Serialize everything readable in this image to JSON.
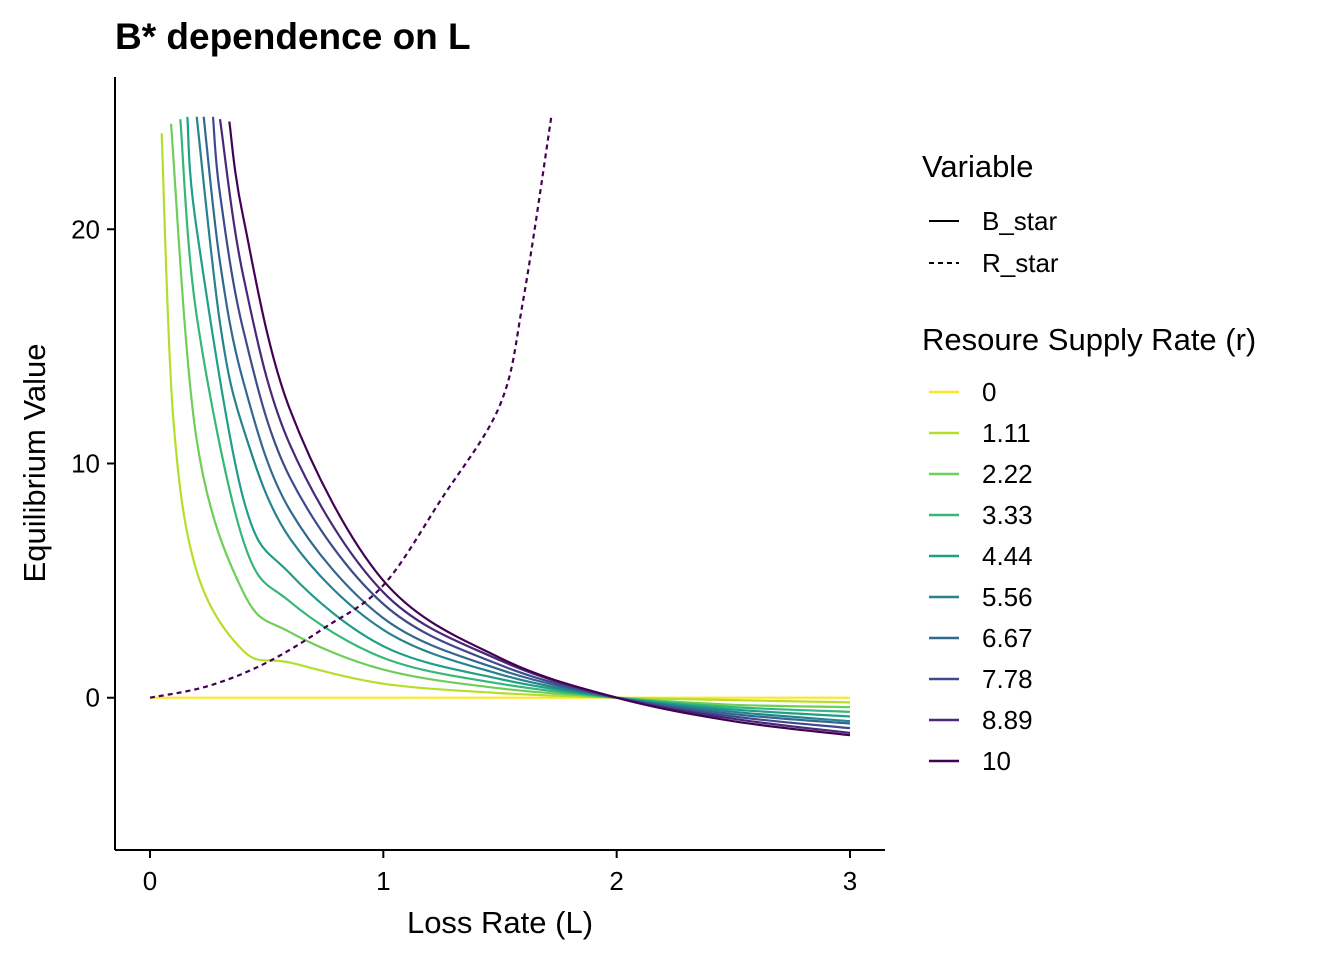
{
  "chart_data": {
    "type": "line",
    "title": "B* dependence on L",
    "xlabel": "Loss Rate (L)",
    "ylabel": "Equilibrium Value",
    "xlim": [
      -0.15,
      3.15
    ],
    "ylim": [
      -6.5,
      26.5
    ],
    "x_ticks": [
      0,
      1,
      2,
      3
    ],
    "x_tick_labels": [
      "0",
      "1",
      "2",
      "3"
    ],
    "y_ticks": [
      0,
      10,
      20
    ],
    "y_tick_labels": [
      "0",
      "10",
      "20"
    ],
    "grid": false,
    "legend_position": "right",
    "legend_variable": {
      "title": "Variable",
      "entries": [
        {
          "label": "B_star",
          "linetype": "solid"
        },
        {
          "label": "R_star",
          "linetype": "dashed"
        }
      ]
    },
    "legend_color": {
      "title": "Resoure Supply Rate (r)",
      "entries": [
        {
          "label": "0",
          "color": "#FDE725"
        },
        {
          "label": "1.11",
          "color": "#B5DE2B"
        },
        {
          "label": "2.22",
          "color": "#6ECE58"
        },
        {
          "label": "3.33",
          "color": "#35B779"
        },
        {
          "label": "4.44",
          "color": "#1F9E89"
        },
        {
          "label": "5.56",
          "color": "#26828E"
        },
        {
          "label": "6.67",
          "color": "#31688E"
        },
        {
          "label": "7.78",
          "color": "#3E4A89"
        },
        {
          "label": "8.89",
          "color": "#482878"
        },
        {
          "label": "10",
          "color": "#440154"
        }
      ]
    },
    "series_note": "B_star for each r; R_star shown as single dashed curve",
    "series": [
      {
        "r": 0,
        "variable": "B_star",
        "color": "#FDE725",
        "x": [
          0,
          3
        ],
        "y": [
          0,
          0
        ]
      },
      {
        "r": 1.11,
        "variable": "B_star",
        "color": "#B5DE2B",
        "x": [
          0.05,
          0.1,
          0.2,
          0.4,
          0.6,
          1.0,
          1.5,
          2.0,
          2.5,
          3.0
        ],
        "y": [
          24.1,
          11.9,
          5.4,
          2.0,
          1.5,
          0.6,
          0.2,
          0,
          -0.1,
          -0.2
        ]
      },
      {
        "r": 2.22,
        "variable": "B_star",
        "color": "#6ECE58",
        "x": [
          0.09,
          0.2,
          0.4,
          0.6,
          1.0,
          1.5,
          2.0,
          2.5,
          3.0
        ],
        "y": [
          24.5,
          11.0,
          4.5,
          2.8,
          1.2,
          0.4,
          0,
          -0.3,
          -0.4
        ]
      },
      {
        "r": 3.33,
        "variable": "B_star",
        "color": "#35B779",
        "x": [
          0.13,
          0.2,
          0.4,
          0.6,
          1.0,
          1.5,
          2.0,
          2.5,
          3.0
        ],
        "y": [
          24.7,
          16.3,
          6.7,
          4.1,
          1.7,
          0.6,
          0,
          -0.4,
          -0.6
        ]
      },
      {
        "r": 4.44,
        "variable": "B_star",
        "color": "#1F9E89",
        "x": [
          0.16,
          0.2,
          0.4,
          0.6,
          1.0,
          1.5,
          2.0,
          2.5,
          3.0
        ],
        "y": [
          24.8,
          20.0,
          8.5,
          5.3,
          2.2,
          0.8,
          0,
          -0.5,
          -0.8
        ]
      },
      {
        "r": 5.56,
        "variable": "B_star",
        "color": "#26828E",
        "x": [
          0.2,
          0.3,
          0.4,
          0.6,
          1.0,
          1.5,
          2.0,
          2.5,
          3.0
        ],
        "y": [
          24.8,
          16.0,
          11.5,
          6.8,
          2.9,
          1.0,
          0,
          -0.6,
          -1.0
        ]
      },
      {
        "r": 6.67,
        "variable": "B_star",
        "color": "#31688E",
        "x": [
          0.23,
          0.3,
          0.4,
          0.6,
          1.0,
          1.5,
          2.0,
          2.5,
          3.0
        ],
        "y": [
          24.8,
          18.6,
          13.5,
          8.0,
          3.4,
          1.2,
          0,
          -0.7,
          -1.1
        ]
      },
      {
        "r": 7.78,
        "variable": "B_star",
        "color": "#3E4A89",
        "x": [
          0.27,
          0.3,
          0.4,
          0.6,
          1.0,
          1.5,
          2.0,
          2.5,
          3.0
        ],
        "y": [
          24.8,
          21.5,
          15.7,
          9.4,
          4.0,
          1.4,
          0,
          -0.8,
          -1.3
        ]
      },
      {
        "r": 8.89,
        "variable": "B_star",
        "color": "#482878",
        "x": [
          0.3,
          0.4,
          0.6,
          1.0,
          1.5,
          2.0,
          2.5,
          3.0
        ],
        "y": [
          24.7,
          18.0,
          10.8,
          4.5,
          1.6,
          0,
          -0.9,
          -1.5
        ]
      },
      {
        "r": 10,
        "variable": "B_star",
        "color": "#440154",
        "x": [
          0.34,
          0.4,
          0.6,
          1.0,
          1.5,
          2.0,
          2.5,
          3.0
        ],
        "y": [
          24.6,
          20.5,
          12.3,
          5.0,
          1.7,
          0,
          -1.0,
          -1.6
        ]
      },
      {
        "variable": "R_star",
        "color": "#440154",
        "dashed": true,
        "x": [
          0,
          0.25,
          0.5,
          0.75,
          1.0,
          1.25,
          1.5,
          1.6,
          1.72
        ],
        "y": [
          0,
          0.5,
          1.5,
          3.0,
          4.8,
          8.5,
          12.5,
          17.0,
          24.8
        ]
      }
    ]
  }
}
